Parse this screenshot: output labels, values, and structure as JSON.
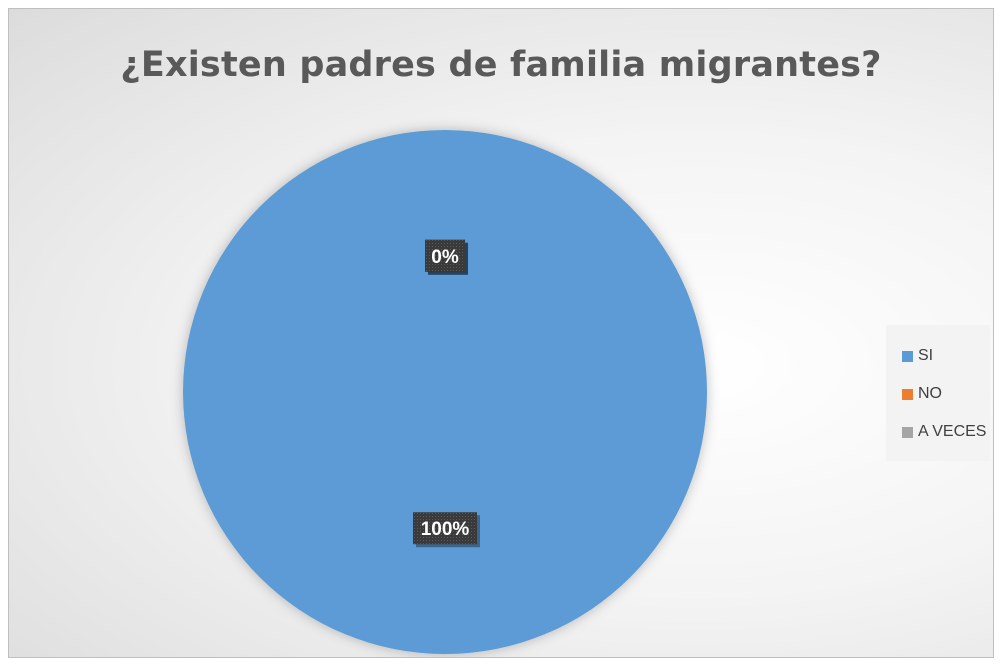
{
  "chart_data": {
    "type": "pie",
    "title": "¿Existen padres de familia migrantes?",
    "categories": [
      "SI",
      "NO",
      "A VECES"
    ],
    "values": [
      100,
      0,
      0
    ],
    "data_labels": [
      "100%",
      "0%",
      "0%"
    ],
    "legend_position": "right",
    "colors": [
      "#5b9bd5",
      "#ed7d31",
      "#a5a5a5"
    ]
  }
}
